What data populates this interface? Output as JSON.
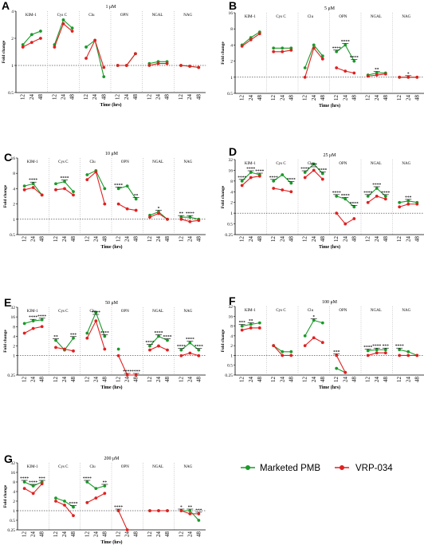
{
  "legend": [
    {
      "name": "Marketed PMB",
      "color": "#1a9a2a"
    },
    {
      "name": "VRP-034",
      "color": "#e02020"
    }
  ],
  "colors": {
    "pmb": "#1a9a2a",
    "vrp": "#e02020"
  },
  "chart_data": [
    {
      "letter": "A",
      "title": "1 μM",
      "type": "line",
      "xlabel": "Time (hrs)",
      "ylabel": "Fold change",
      "yscale": "log2",
      "yticks": [
        "0.5",
        "1",
        "2",
        "4"
      ],
      "ylim": [
        0.5,
        4
      ],
      "groups": [
        "KIM-1",
        "Cys C",
        "Clu",
        "OPN",
        "NGAL",
        "NAG"
      ],
      "x": [
        "12",
        "24",
        "48"
      ],
      "series": [
        {
          "name": "Marketed PMB",
          "values": [
            [
              1.7,
              2.2,
              2.4
            ],
            [
              1.7,
              3.2,
              2.6
            ],
            [
              1.6,
              1.9,
              0.75
            ],
            [
              1.0,
              1.0,
              1.35
            ],
            [
              1.05,
              1.1,
              1.1
            ],
            [
              1.0,
              0.98,
              0.95
            ]
          ]
        },
        {
          "name": "VRP-034",
          "values": [
            [
              1.6,
              1.8,
              2.0
            ],
            [
              1.6,
              2.9,
              2.4
            ],
            [
              1.2,
              1.9,
              0.95
            ],
            [
              1.0,
              1.0,
              1.35
            ],
            [
              1.0,
              1.05,
              1.05
            ],
            [
              1.0,
              0.98,
              0.95
            ]
          ]
        }
      ],
      "significance": []
    },
    {
      "letter": "B",
      "title": "5 μM",
      "type": "line",
      "xlabel": "Time (hrs)",
      "ylabel": "Fold change",
      "yscale": "log2",
      "yticks": [
        "0.5",
        "1",
        "2",
        "4",
        "8",
        "16"
      ],
      "ylim": [
        0.5,
        16
      ],
      "groups": [
        "KIM-1",
        "Cys C",
        "Clu",
        "OPN",
        "NGAL",
        "NAG"
      ],
      "x": [
        "12",
        "24",
        "48"
      ],
      "series": [
        {
          "name": "Marketed PMB",
          "values": [
            [
              4.0,
              5.5,
              7.0
            ],
            [
              3.5,
              3.5,
              3.5
            ],
            [
              1.5,
              4.0,
              2.5
            ],
            [
              3.0,
              4.0,
              2.0
            ],
            [
              1.1,
              1.2,
              1.2
            ],
            [
              1.0,
              1.0,
              1.0
            ]
          ]
        },
        {
          "name": "VRP-034",
          "values": [
            [
              3.8,
              5.0,
              6.5
            ],
            [
              3.0,
              3.0,
              3.2
            ],
            [
              1.0,
              3.5,
              2.2
            ],
            [
              1.5,
              1.3,
              1.2
            ],
            [
              1.05,
              1.1,
              1.15
            ],
            [
              1.0,
              1.0,
              1.0
            ]
          ]
        }
      ],
      "significance": [
        [
          "",
          "",
          ""
        ],
        [
          "",
          "",
          ""
        ],
        [
          "",
          "",
          ""
        ],
        [
          "****",
          "****",
          "****"
        ],
        [
          "",
          "**",
          ""
        ],
        [
          "",
          "*",
          ""
        ]
      ]
    },
    {
      "letter": "C",
      "title": "10 μM",
      "type": "line",
      "xlabel": "Time (hrs)",
      "ylabel": "Fold change",
      "yscale": "log2",
      "yticks": [
        "0.5",
        "1",
        "2",
        "4",
        "8",
        "16"
      ],
      "ylim": [
        0.5,
        16
      ],
      "groups": [
        "KIM-1",
        "Cys C",
        "Clu",
        "OPN",
        "NGAL",
        "NAG"
      ],
      "x": [
        "12",
        "24",
        "48"
      ],
      "series": [
        {
          "name": "Marketed PMB",
          "values": [
            [
              4.5,
              5.0,
              3.0
            ],
            [
              5.0,
              5.5,
              3.5
            ],
            [
              7.5,
              9.0,
              4.0
            ],
            [
              4.0,
              4.5,
              2.5
            ],
            [
              1.2,
              1.4,
              1.0
            ],
            [
              1.1,
              1.1,
              1.0
            ]
          ]
        },
        {
          "name": "VRP-034",
          "values": [
            [
              3.8,
              4.2,
              3.0
            ],
            [
              3.8,
              4.0,
              3.0
            ],
            [
              6.0,
              8.5,
              2.0
            ],
            [
              2.0,
              1.6,
              1.5
            ],
            [
              1.1,
              1.3,
              1.0
            ],
            [
              1.0,
              0.9,
              0.95
            ]
          ]
        }
      ],
      "significance": [
        [
          "",
          "****",
          ""
        ],
        [
          "",
          "****",
          ""
        ],
        [
          "",
          "",
          ""
        ],
        [
          "****",
          "",
          "**"
        ],
        [
          "",
          "*",
          ""
        ],
        [
          "**",
          "****",
          ""
        ]
      ]
    },
    {
      "letter": "D",
      "title": "25 μM",
      "type": "line",
      "xlabel": "Time (hrs)",
      "ylabel": "Fold change",
      "yscale": "log2",
      "yticks": [
        "0.25",
        "0.5",
        "1",
        "2",
        "4",
        "8",
        "16",
        "32"
      ],
      "ylim": [
        0.25,
        32
      ],
      "groups": [
        "KIM-1",
        "Cys C",
        "Clu",
        "OPN",
        "NGAL",
        "NAG"
      ],
      "x": [
        "12",
        "24",
        "48"
      ],
      "series": [
        {
          "name": "Marketed PMB",
          "values": [
            [
              8.0,
              14.0,
              12.0
            ],
            [
              8.0,
              12.0,
              7.0
            ],
            [
              14.0,
              24.0,
              13.0
            ],
            [
              3.0,
              2.5,
              1.5
            ],
            [
              3.0,
              5.0,
              3.0
            ],
            [
              2.0,
              2.2,
              2.0
            ]
          ]
        },
        {
          "name": "VRP-034",
          "values": [
            [
              6.0,
              10.0,
              11.0
            ],
            [
              5.0,
              4.5,
              4.0
            ],
            [
              10.0,
              16.0,
              9.0
            ],
            [
              1.0,
              0.5,
              0.7
            ],
            [
              2.0,
              3.0,
              2.5
            ],
            [
              1.5,
              1.8,
              1.8
            ]
          ]
        }
      ],
      "significance": [
        [
          "****",
          "****",
          "****"
        ],
        [
          "****",
          "",
          "****"
        ],
        [
          "****",
          "***",
          "****"
        ],
        [
          "****",
          "****",
          "****"
        ],
        [
          "****",
          "****",
          "****"
        ],
        [
          "",
          "***",
          ""
        ]
      ]
    },
    {
      "letter": "E",
      "title": "50 μM",
      "type": "line",
      "xlabel": "Time (hrs)",
      "ylabel": "Fold change",
      "yscale": "log2",
      "yticks": [
        "0.25",
        "1",
        "2",
        "4",
        "8",
        "16",
        "32"
      ],
      "ylim": [
        0.25,
        32
      ],
      "groups": [
        "KIM-1",
        "Cys C",
        "Clu",
        "OPN",
        "NGAL",
        "NAG"
      ],
      "x": [
        "12",
        "24",
        "48"
      ],
      "series": [
        {
          "name": "Marketed PMB",
          "values": [
            [
              10.0,
              12.0,
              13.0
            ],
            [
              3.0,
              1.5,
              3.5
            ],
            [
              5.0,
              22.0,
              4.0
            ],
            [
              1.6,
              null,
              null
            ],
            [
              2.0,
              4.0,
              3.0
            ],
            [
              1.5,
              2.5,
              1.5
            ]
          ]
        },
        {
          "name": "VRP-034",
          "values": [
            [
              5.0,
              7.0,
              8.0
            ],
            [
              1.8,
              1.6,
              1.4
            ],
            [
              3.5,
              12.0,
              1.6
            ],
            [
              1.0,
              0.2,
              0.2
            ],
            [
              1.5,
              2.0,
              1.5
            ],
            [
              1.0,
              1.2,
              1.0
            ]
          ]
        }
      ],
      "significance": [
        [
          "",
          "****",
          "****"
        ],
        [
          "**",
          "",
          "***"
        ],
        [
          "",
          "****",
          "****"
        ],
        [
          "",
          "****",
          "****"
        ],
        [
          "****",
          "****",
          "****"
        ],
        [
          "****",
          "****",
          "****"
        ]
      ]
    },
    {
      "letter": "F",
      "title": "100 μM",
      "type": "line",
      "xlabel": "Time (hrs)",
      "ylabel": "Fold change",
      "yscale": "log2",
      "yticks": [
        "0.25",
        "0.5",
        "1",
        "2",
        "4",
        "8",
        "16",
        "32"
      ],
      "ylim": [
        0.25,
        32
      ],
      "groups": [
        "KIM-1",
        "Cys C",
        "Clu",
        "OPN",
        "NGAL",
        "NAG"
      ],
      "x": [
        "12",
        "24",
        "48"
      ],
      "series": [
        {
          "name": "Marketed PMB",
          "values": [
            [
              8.0,
              9.0,
              10.0
            ],
            [
              2.0,
              1.3,
              1.3
            ],
            [
              4.0,
              12.0,
              10.0
            ],
            [
              0.4,
              0.3,
              null
            ],
            [
              1.4,
              1.5,
              1.5
            ],
            [
              1.5,
              1.3,
              1.0
            ]
          ]
        },
        {
          "name": "VRP-034",
          "values": [
            [
              6.0,
              7.0,
              7.0
            ],
            [
              2.0,
              1.0,
              1.0
            ],
            [
              2.0,
              3.5,
              2.5
            ],
            [
              1.0,
              0.3,
              null
            ],
            [
              1.0,
              1.2,
              1.2
            ],
            [
              1.0,
              1.0,
              1.0
            ]
          ]
        }
      ],
      "significance": [
        [
          "***",
          "**",
          ""
        ],
        [
          "",
          "",
          ""
        ],
        [
          "",
          "*",
          ""
        ],
        [
          "***",
          "",
          ""
        ],
        [
          "****",
          "****",
          "***"
        ],
        [
          "****",
          "",
          ""
        ]
      ]
    },
    {
      "letter": "G",
      "title": "200 μM",
      "type": "line",
      "xlabel": "Time (hrs)",
      "ylabel": "Fold change",
      "yscale": "log2",
      "yticks": [
        "0.25",
        "0.5",
        "1",
        "2",
        "4",
        "8",
        "16",
        "32"
      ],
      "ylim": [
        0.25,
        32
      ],
      "groups": [
        "KIM-1",
        "Cys C",
        "Clu",
        "OPN",
        "NGAL",
        "NAG"
      ],
      "x": [
        "12",
        "24",
        "48"
      ],
      "series": [
        {
          "name": "Marketed PMB",
          "values": [
            [
              8.0,
              6.0,
              8.0
            ],
            [
              2.5,
              2.0,
              1.3
            ],
            [
              8.0,
              5.0,
              6.0
            ],
            [
              1.0,
              null,
              null
            ],
            [
              1.0,
              1.0,
              1.0
            ],
            [
              1.0,
              1.0,
              0.5
            ]
          ]
        },
        {
          "name": "VRP-034",
          "values": [
            [
              5.0,
              3.5,
              7.0
            ],
            [
              2.0,
              1.5,
              0.7
            ],
            [
              1.8,
              2.5,
              3.5
            ],
            [
              1.0,
              0.2,
              null
            ],
            [
              1.0,
              1.0,
              1.0
            ],
            [
              1.0,
              0.8,
              0.8
            ]
          ]
        }
      ],
      "significance": [
        [
          "****",
          "****",
          "***"
        ],
        [
          "",
          "",
          "****"
        ],
        [
          "****",
          "",
          "**"
        ],
        [
          "****",
          "",
          ""
        ],
        [
          "",
          "",
          ""
        ],
        [
          "*",
          "**",
          "***"
        ]
      ]
    }
  ]
}
